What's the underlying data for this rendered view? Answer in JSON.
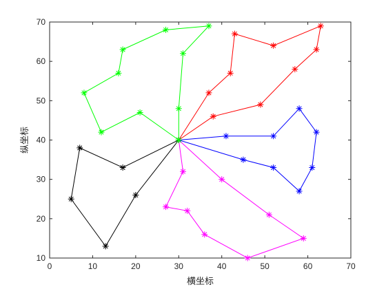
{
  "chart_data": {
    "type": "line",
    "title": "",
    "xlabel": "横坐标",
    "ylabel": "纵坐标",
    "xlim": [
      0,
      70
    ],
    "ylim": [
      10,
      70
    ],
    "xticks": [
      0,
      10,
      20,
      30,
      40,
      50,
      60,
      70
    ],
    "yticks": [
      10,
      20,
      30,
      40,
      50,
      60,
      70
    ],
    "grid": false,
    "marker": "asterisk",
    "series": [
      {
        "color": "#ff0000",
        "x": [
          30,
          37,
          42,
          43,
          52,
          63,
          62,
          57,
          49,
          38,
          30
        ],
        "y": [
          40,
          52,
          57,
          67,
          64,
          69,
          63,
          58,
          49,
          46,
          40
        ]
      },
      {
        "color": "#0000ff",
        "x": [
          30,
          41,
          52,
          58,
          62,
          61,
          58,
          52,
          45,
          30
        ],
        "y": [
          40,
          41,
          41,
          48,
          42,
          33,
          27,
          33,
          35,
          40
        ]
      },
      {
        "color": "#ff00ff",
        "x": [
          30,
          40,
          51,
          59,
          46,
          36,
          32,
          27,
          31,
          30
        ],
        "y": [
          40,
          30,
          21,
          15,
          10,
          16,
          22,
          23,
          32,
          40
        ]
      },
      {
        "color": "#000000",
        "x": [
          30,
          17,
          7,
          5,
          13,
          20,
          30
        ],
        "y": [
          40,
          33,
          38,
          25,
          13,
          26,
          40
        ]
      },
      {
        "color": "#00ff00",
        "x": [
          30,
          21,
          12,
          8,
          16,
          17,
          27,
          37,
          31,
          30,
          30
        ],
        "y": [
          40,
          47,
          42,
          52,
          57,
          63,
          68,
          69,
          62,
          48,
          40
        ]
      }
    ]
  }
}
